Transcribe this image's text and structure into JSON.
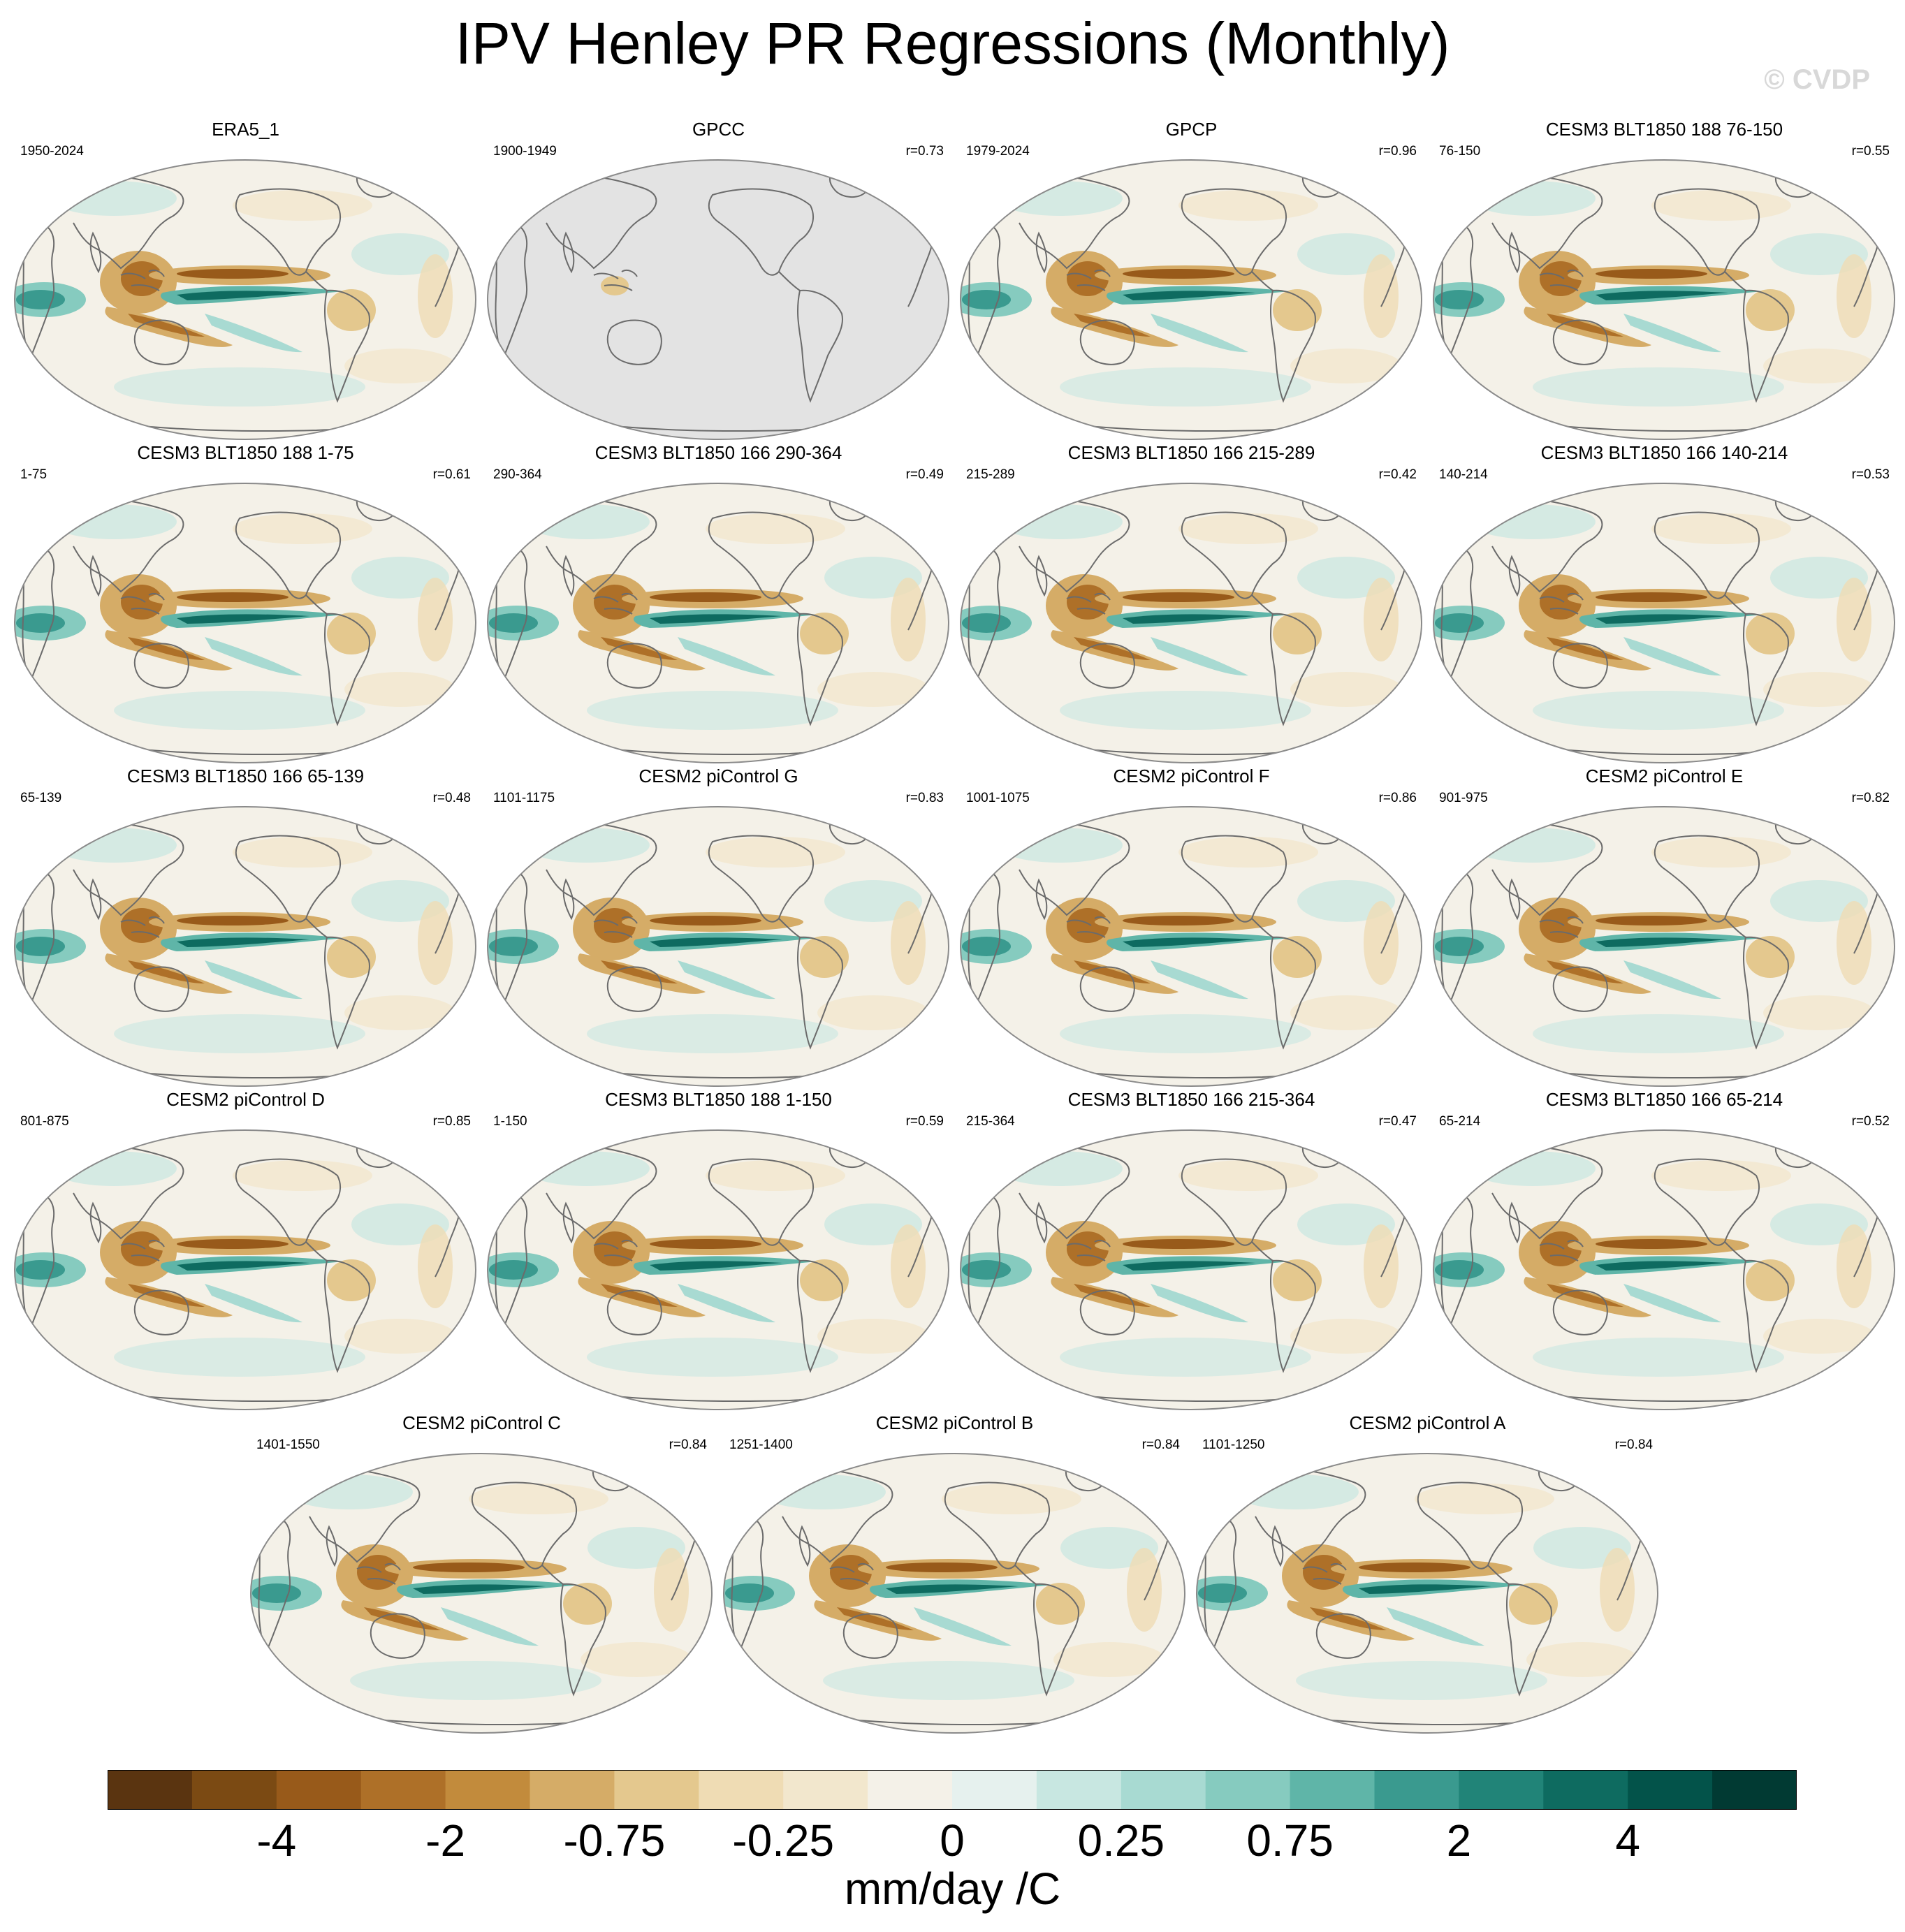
{
  "title": "IPV Henley PR Regressions (Monthly)",
  "watermark": "© CVDP",
  "units": "mm/day /C",
  "colorbar": {
    "colors": [
      "#5a3410",
      "#7b4a13",
      "#985a1a",
      "#ae7028",
      "#c28b3c",
      "#d5ac67",
      "#e4c88e",
      "#efdcb4",
      "#f2e7cd",
      "#f4f1e8",
      "#e6f1ee",
      "#c8e7e1",
      "#a8dad2",
      "#86cbbf",
      "#5fb5a8",
      "#3a9a8f",
      "#218478",
      "#0e6b60",
      "#03534a",
      "#013a33"
    ],
    "labels": [
      "-4",
      "-2",
      "-0.75",
      "-0.25",
      "0",
      "0.25",
      "0.75",
      "2",
      "4"
    ]
  },
  "panels": [
    {
      "title": "ERA5_1",
      "years": "1950-2024",
      "r": "",
      "missing": false
    },
    {
      "title": "GPCC",
      "years": "1900-1949",
      "r": "r=0.73",
      "missing": true
    },
    {
      "title": "GPCP",
      "years": "1979-2024",
      "r": "r=0.96",
      "missing": false
    },
    {
      "title": "CESM3 BLT1850 188 76-150",
      "years": "76-150",
      "r": "r=0.55",
      "missing": false
    },
    {
      "title": "CESM3 BLT1850 188 1-75",
      "years": "1-75",
      "r": "r=0.61",
      "missing": false
    },
    {
      "title": "CESM3 BLT1850 166 290-364",
      "years": "290-364",
      "r": "r=0.49",
      "missing": false
    },
    {
      "title": "CESM3 BLT1850 166 215-289",
      "years": "215-289",
      "r": "r=0.42",
      "missing": false
    },
    {
      "title": "CESM3 BLT1850 166 140-214",
      "years": "140-214",
      "r": "r=0.53",
      "missing": false
    },
    {
      "title": "CESM3 BLT1850 166 65-139",
      "years": "65-139",
      "r": "r=0.48",
      "missing": false
    },
    {
      "title": "CESM2 piControl G",
      "years": "1101-1175",
      "r": "r=0.83",
      "missing": false
    },
    {
      "title": "CESM2 piControl F",
      "years": "1001-1075",
      "r": "r=0.86",
      "missing": false
    },
    {
      "title": "CESM2 piControl E",
      "years": "901-975",
      "r": "r=0.82",
      "missing": false
    },
    {
      "title": "CESM2 piControl D",
      "years": "801-875",
      "r": "r=0.85",
      "missing": false
    },
    {
      "title": "CESM3 BLT1850 188 1-150",
      "years": "1-150",
      "r": "r=0.59",
      "missing": false
    },
    {
      "title": "CESM3 BLT1850 166 215-364",
      "years": "215-364",
      "r": "r=0.47",
      "missing": false
    },
    {
      "title": "CESM3 BLT1850 166 65-214",
      "years": "65-214",
      "r": "r=0.52",
      "missing": false
    },
    {
      "title": "CESM2 piControl C",
      "years": "1401-1550",
      "r": "r=0.84",
      "missing": false
    },
    {
      "title": "CESM2 piControl B",
      "years": "1251-1400",
      "r": "r=0.84",
      "missing": false
    },
    {
      "title": "CESM2 piControl A",
      "years": "1101-1250",
      "r": "r=0.84",
      "missing": false
    }
  ]
}
